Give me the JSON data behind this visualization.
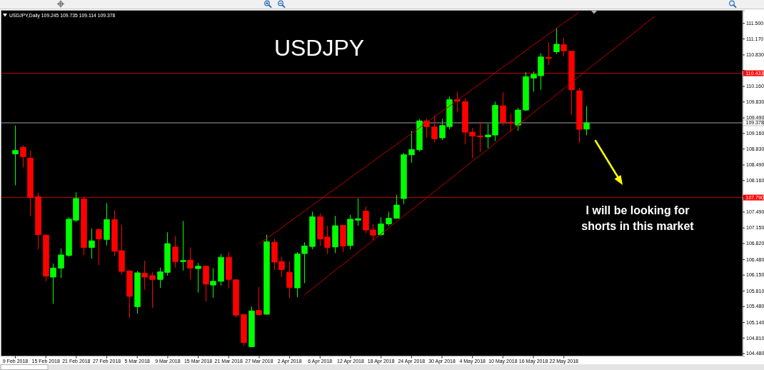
{
  "chart_data": {
    "type": "candlestick",
    "title": "USDJPY",
    "subtitle": "USDJPY,Daily 109.245 109.735 109.114 109.378",
    "categories": [
      "9 Feb 2018",
      null,
      null,
      null,
      "15 Feb 2018",
      null,
      null,
      null,
      "21 Feb 2018",
      null,
      null,
      null,
      "27 Feb 2018",
      null,
      null,
      null,
      "5 Mar 2018",
      null,
      null,
      null,
      "9 Mar 2018",
      null,
      null,
      null,
      "15 Mar 2018",
      null,
      null,
      null,
      "21 Mar 2018",
      null,
      null,
      null,
      "27 Mar 2018",
      null,
      null,
      null,
      "2 Apr 2018",
      null,
      null,
      null,
      "6 Apr 2018",
      null,
      null,
      null,
      "12 Apr 2018",
      null,
      null,
      null,
      "18 Apr 2018",
      null,
      null,
      null,
      "24 Apr 2018",
      null,
      null,
      null,
      "30 Apr 2018",
      null,
      null,
      null,
      "4 May 2018",
      null,
      null,
      null,
      "10 May 2018",
      null,
      null,
      null,
      "16 May 2018",
      null,
      null,
      null,
      "22 May 2018",
      null,
      null,
      null,
      null,
      null,
      null,
      null,
      null,
      null,
      null,
      null,
      null,
      null,
      null,
      null,
      null,
      null,
      null,
      null,
      null,
      null,
      null
    ],
    "ohlc": [
      [
        108.72,
        109.32,
        108.05,
        108.79
      ],
      [
        108.86,
        108.9,
        108.43,
        108.66
      ],
      [
        108.63,
        108.79,
        107.4,
        107.79
      ],
      [
        107.81,
        107.89,
        106.69,
        107.0
      ],
      [
        106.99,
        107.0,
        106.01,
        106.12
      ],
      [
        106.1,
        106.39,
        105.53,
        106.29
      ],
      [
        106.29,
        106.71,
        106.08,
        106.57
      ],
      [
        106.56,
        107.37,
        106.53,
        107.33
      ],
      [
        107.31,
        107.9,
        107.27,
        107.77
      ],
      [
        107.76,
        107.79,
        106.57,
        106.73
      ],
      [
        106.73,
        107.13,
        106.49,
        106.87
      ],
      [
        107.11,
        107.13,
        106.35,
        106.91
      ],
      [
        106.9,
        107.67,
        106.77,
        107.32
      ],
      [
        107.32,
        107.52,
        106.55,
        106.65
      ],
      [
        106.66,
        107.21,
        106.15,
        106.22
      ],
      [
        106.23,
        106.25,
        105.23,
        105.69
      ],
      [
        105.47,
        106.23,
        105.32,
        106.19
      ],
      [
        106.18,
        106.45,
        105.83,
        106.1
      ],
      [
        106.13,
        106.2,
        105.44,
        106.05
      ],
      [
        106.05,
        106.3,
        105.87,
        106.21
      ],
      [
        106.2,
        107.05,
        106.13,
        106.81
      ],
      [
        106.74,
        106.97,
        106.3,
        106.43
      ],
      [
        106.43,
        107.29,
        106.24,
        106.45
      ],
      [
        106.46,
        106.73,
        106.05,
        106.29
      ],
      [
        106.28,
        106.4,
        105.77,
        106.33
      ],
      [
        106.33,
        106.35,
        105.58,
        105.95
      ],
      [
        105.93,
        106.29,
        105.66,
        106.01
      ],
      [
        106.01,
        106.59,
        105.92,
        106.52
      ],
      [
        106.52,
        106.63,
        105.86,
        106.05
      ],
      [
        106.04,
        106.05,
        105.24,
        105.29
      ],
      [
        105.3,
        105.32,
        104.63,
        104.71
      ],
      [
        104.62,
        105.47,
        104.61,
        105.38
      ],
      [
        105.39,
        105.89,
        105.29,
        105.3
      ],
      [
        105.31,
        107.0,
        105.3,
        106.85
      ],
      [
        106.84,
        106.91,
        106.25,
        106.42
      ],
      [
        106.43,
        106.53,
        106.1,
        106.26
      ],
      [
        106.2,
        106.43,
        105.65,
        105.88
      ],
      [
        105.87,
        106.63,
        105.67,
        106.59
      ],
      [
        106.6,
        106.84,
        105.97,
        106.76
      ],
      [
        106.75,
        107.49,
        106.69,
        107.38
      ],
      [
        107.38,
        107.45,
        106.76,
        106.91
      ],
      [
        106.95,
        107.19,
        106.59,
        106.73
      ],
      [
        106.74,
        107.4,
        106.61,
        107.19
      ],
      [
        107.2,
        107.2,
        106.63,
        106.76
      ],
      [
        106.77,
        107.42,
        106.69,
        107.33
      ],
      [
        107.31,
        107.77,
        107.19,
        107.34
      ],
      [
        107.5,
        107.6,
        107.03,
        107.1
      ],
      [
        107.1,
        107.22,
        106.88,
        106.99
      ],
      [
        107.0,
        107.37,
        106.98,
        107.23
      ],
      [
        107.23,
        107.49,
        107.19,
        107.35
      ],
      [
        107.35,
        107.85,
        107.34,
        107.63
      ],
      [
        107.77,
        108.74,
        107.65,
        108.7
      ],
      [
        108.7,
        109.21,
        108.53,
        108.81
      ],
      [
        108.81,
        109.46,
        108.77,
        109.42
      ],
      [
        109.42,
        109.47,
        109.06,
        109.3
      ],
      [
        109.29,
        109.53,
        108.97,
        109.04
      ],
      [
        109.06,
        109.46,
        109.01,
        109.32
      ],
      [
        109.3,
        109.94,
        109.24,
        109.87
      ],
      [
        109.87,
        110.04,
        109.6,
        109.84
      ],
      [
        109.83,
        109.9,
        108.92,
        109.18
      ],
      [
        109.18,
        109.27,
        108.63,
        109.1
      ],
      [
        109.1,
        109.39,
        108.76,
        109.08
      ],
      [
        109.08,
        109.36,
        108.84,
        109.12
      ],
      [
        109.12,
        109.83,
        108.99,
        109.75
      ],
      [
        109.74,
        110.03,
        109.32,
        109.39
      ],
      [
        109.39,
        109.57,
        109.19,
        109.37
      ],
      [
        109.33,
        109.7,
        109.21,
        109.65
      ],
      [
        109.65,
        110.46,
        109.63,
        110.36
      ],
      [
        110.33,
        110.47,
        110.04,
        110.41
      ],
      [
        110.38,
        110.86,
        110.08,
        110.78
      ],
      [
        110.77,
        111.09,
        110.61,
        110.75
      ],
      [
        110.89,
        111.4,
        110.84,
        111.05
      ],
      [
        111.04,
        111.19,
        110.79,
        110.91
      ],
      [
        110.9,
        110.91,
        109.55,
        110.08
      ],
      [
        110.06,
        110.13,
        108.95,
        109.24
      ],
      [
        109.245,
        109.735,
        109.114,
        109.378
      ],
      null,
      null,
      null,
      null,
      null,
      null,
      null,
      null,
      null,
      null,
      null,
      null,
      null,
      null,
      null,
      null,
      null,
      null,
      null
    ],
    "colors": [
      "#00ff00",
      "#ff0000",
      "#ff0000",
      "#ff0000",
      "#ff0000",
      "#00ff00",
      "#00ff00",
      "#00ff00",
      "#00ff00",
      "#ff0000",
      "#00ff00",
      "#ff0000",
      "#00ff00",
      "#ff0000",
      "#ff0000",
      "#ff0000",
      "#00ff00",
      "#ff0000",
      "#ff0000",
      "#00ff00",
      "#00ff00",
      "#ff0000",
      "#00ff00",
      "#ff0000",
      "#00ff00",
      "#ff0000",
      "#00ff00",
      "#00ff00",
      "#ff0000",
      "#ff0000",
      "#ff0000",
      "#00ff00",
      "#ff0000",
      "#00ff00",
      "#ff0000",
      "#ff0000",
      "#ff0000",
      "#00ff00",
      "#00ff00",
      "#00ff00",
      "#ff0000",
      "#ff0000",
      "#00ff00",
      "#ff0000",
      "#00ff00",
      "#00ff00",
      "#ff0000",
      "#ff0000",
      "#00ff00",
      "#00ff00",
      "#00ff00",
      "#00ff00",
      "#00ff00",
      "#00ff00",
      "#ff0000",
      "#ff0000",
      "#00ff00",
      "#00ff00",
      "#ff0000",
      "#ff0000",
      "#ff0000",
      "#ff0000",
      "#00ff00",
      "#00ff00",
      "#ff0000",
      "#ff0000",
      "#00ff00",
      "#00ff00",
      "#00ff00",
      "#00ff00",
      "#ff0000",
      "#00ff00",
      "#ff0000",
      "#ff0000",
      "#ff0000",
      "#00ff00",
      null,
      null,
      null,
      null,
      null,
      null,
      null,
      null,
      null,
      null,
      null,
      null,
      null,
      null,
      null,
      null,
      null,
      null,
      null
    ],
    "ylim": [
      104.42,
      111.77
    ],
    "yticks": [
      {
        "value": 111.5,
        "label": "111.500"
      },
      {
        "value": 111.17,
        "label": "111.170"
      },
      {
        "value": 110.83,
        "label": "110.830"
      },
      {
        "value": 110.5,
        "label": null
      },
      {
        "value": 110.16,
        "label": "110.160"
      },
      {
        "value": 109.83,
        "label": "109.830"
      },
      {
        "value": 109.49,
        "label": "109.490"
      },
      {
        "value": 109.16,
        "label": "109.160"
      },
      {
        "value": 108.83,
        "label": "108.830"
      },
      {
        "value": 108.49,
        "label": "108.490"
      },
      {
        "value": 108.16,
        "label": "108.160"
      },
      {
        "value": 107.82,
        "label": null
      },
      {
        "value": 107.49,
        "label": "107.490"
      },
      {
        "value": 107.15,
        "label": "107.150"
      },
      {
        "value": 106.82,
        "label": "106.820"
      },
      {
        "value": 106.48,
        "label": "106.480"
      },
      {
        "value": 106.15,
        "label": "106.150"
      },
      {
        "value": 105.81,
        "label": "105.810"
      },
      {
        "value": 105.48,
        "label": "105.480"
      },
      {
        "value": 105.14,
        "label": "105.140"
      },
      {
        "value": 104.81,
        "label": "104.810"
      },
      {
        "value": 104.48,
        "label": "104.480"
      }
    ],
    "series": [
      {
        "type": "line",
        "color": "#c00000",
        "values": [
          null,
          null,
          null,
          null,
          null,
          null,
          null,
          null,
          null,
          null,
          null,
          null,
          null,
          null,
          null,
          null,
          null,
          null,
          null,
          null,
          null,
          null,
          null,
          null,
          null,
          null,
          null,
          null,
          null,
          null,
          null,
          null,
          106.8,
          106.92,
          107.03,
          107.15,
          107.27,
          107.39,
          107.5,
          107.62,
          107.74,
          107.86,
          107.97,
          108.09,
          108.21,
          108.33,
          108.44,
          108.56,
          108.68,
          108.8,
          108.91,
          109.03,
          109.15,
          109.26,
          109.38,
          109.5,
          109.62,
          109.73,
          109.85,
          109.97,
          110.09,
          110.2,
          110.32,
          110.44,
          110.56,
          110.67,
          110.79,
          110.91,
          111.03,
          111.14,
          111.26,
          111.38,
          111.5,
          111.61,
          111.73,
          null,
          null,
          null,
          null,
          null,
          null,
          null,
          null,
          null,
          null,
          null,
          null,
          null,
          null,
          null,
          null,
          null,
          null,
          null,
          null
        ]
      },
      {
        "type": "line",
        "color": "#c00000",
        "values": [
          null,
          null,
          null,
          null,
          null,
          null,
          null,
          null,
          null,
          null,
          null,
          null,
          null,
          null,
          null,
          null,
          null,
          null,
          null,
          null,
          null,
          null,
          null,
          null,
          null,
          null,
          null,
          null,
          null,
          null,
          null,
          null,
          null,
          null,
          null,
          null,
          null,
          null,
          105.72,
          105.85,
          105.98,
          106.11,
          106.24,
          106.36,
          106.49,
          106.62,
          106.75,
          106.88,
          107.01,
          107.14,
          107.27,
          107.4,
          107.52,
          107.65,
          107.78,
          107.91,
          108.04,
          108.17,
          108.3,
          108.43,
          108.56,
          108.68,
          108.81,
          108.94,
          109.07,
          109.2,
          109.33,
          109.46,
          109.59,
          109.72,
          109.84,
          109.97,
          110.1,
          110.23,
          110.36,
          110.49,
          110.62,
          110.75,
          110.87,
          111.0,
          111.13,
          111.26,
          111.39,
          111.52,
          111.65,
          null,
          null,
          null,
          null,
          null,
          null,
          null,
          null,
          null,
          null
        ]
      }
    ],
    "ref_lines": [
      {
        "axis": "y",
        "value": 110.433,
        "label": "110.433",
        "color": "#c00000"
      },
      {
        "axis": "y",
        "value": 107.79,
        "label": "107.790",
        "color": "#c00000"
      },
      {
        "axis": "y",
        "value": 109.378,
        "label": "109.378",
        "color": "#a0a0a0"
      }
    ],
    "annotations": [
      "I will be looking for shorts in this market"
    ]
  }
}
